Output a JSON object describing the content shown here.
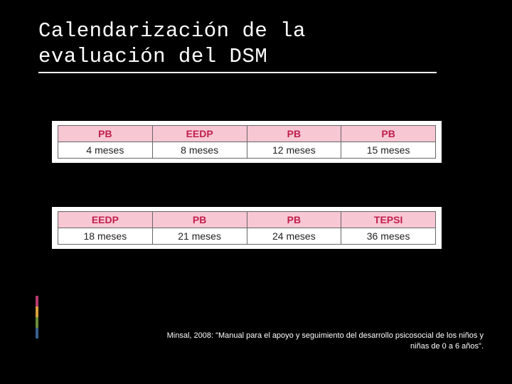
{
  "background_color": "#000000",
  "title": {
    "line1": "Calendarización de la",
    "line2": "evaluación del DSM",
    "color": "#ffffff",
    "underline_color": "#ffffff",
    "font_family": "Courier New",
    "font_size_pt": 22
  },
  "tables": {
    "header_bg": "#f7c7d4",
    "header_text_color": "#c01f4b",
    "cell_bg": "#ffffff",
    "cell_text_color": "#222222",
    "border_color": "#666666",
    "font_size_pt": 11,
    "table1": {
      "headers": [
        "PB",
        "EEDP",
        "PB",
        "PB"
      ],
      "row": [
        "4 meses",
        "8 meses",
        "12 meses",
        "15 meses"
      ]
    },
    "table2": {
      "headers": [
        "EEDP",
        "PB",
        "PB",
        "TEPSI"
      ],
      "row": [
        "18 meses",
        "21 meses",
        "24 meses",
        "36 meses"
      ]
    }
  },
  "citation": {
    "line1": "Minsal, 2008: \"Manual para el apoyo y seguimiento del desarrollo psicosocial de los niños y",
    "line2": "niñas de 0 a 6 años\".",
    "color": "#ffffff",
    "font_size_pt": 8
  },
  "accent_colors": [
    "#b43a6e",
    "#d9a03c",
    "#6b8e3a",
    "#3a5f8e"
  ]
}
